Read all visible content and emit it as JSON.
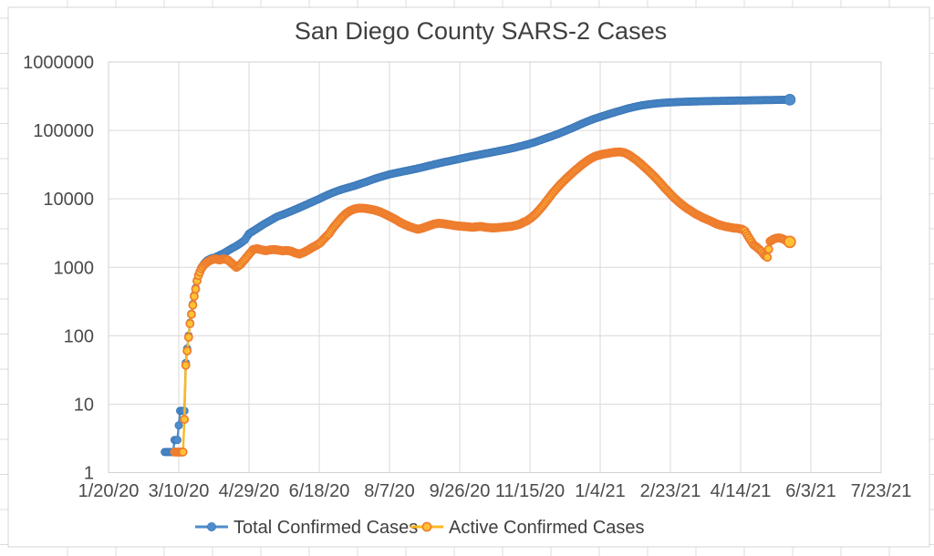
{
  "title": "San Diego County SARS-2 Cases",
  "legend": {
    "items": [
      {
        "label": "Total Confirmed Cases",
        "line_color": "#4E8CCB",
        "marker_fill": "#4E8CCB",
        "marker_stroke": "#3C78B8"
      },
      {
        "label": "Active Confirmed Cases",
        "line_color": "#FFB81F",
        "marker_fill": "#FFC233",
        "marker_stroke": "#EE7D2E"
      }
    ]
  },
  "chart_data": {
    "type": "line",
    "title": "San Diego County SARS-2 Cases",
    "xlabel": "",
    "ylabel": "",
    "grid": true,
    "legend_position": "bottom",
    "x_axis": {
      "tick_labels": [
        "1/20/20",
        "3/10/20",
        "4/29/20",
        "6/18/20",
        "8/7/20",
        "9/26/20",
        "11/15/20",
        "1/4/21",
        "2/23/21",
        "4/14/21",
        "6/3/21",
        "7/23/21"
      ],
      "tick_interval_days": 50,
      "min_day": 0,
      "max_day": 550,
      "day_zero_date": "1/20/20"
    },
    "y_axis": {
      "scale": "log",
      "min": 1,
      "max": 1000000,
      "tick_labels": [
        "1000000",
        "100000",
        "10000",
        "1000",
        "100",
        "10",
        "1"
      ]
    },
    "sampling": "points_day_value are control points [days since 1/20/20, estimated value]; chart shows daily markers, regenerated by log-linear interpolation",
    "series": [
      {
        "name": "Total Confirmed Cases",
        "line_color": "#4E8CCB",
        "marker_fill": "#4E8CCB",
        "marker_stroke": "#3C78B8",
        "marker_stroke_width": 0.8,
        "points_day_value": [
          [
            40,
            2
          ],
          [
            43,
            2
          ],
          [
            46,
            2
          ],
          [
            47,
            3
          ],
          [
            49,
            3
          ],
          [
            51,
            8
          ],
          [
            53,
            8
          ],
          [
            54,
            8
          ],
          [
            55,
            40
          ],
          [
            56,
            65
          ],
          [
            57,
            100
          ],
          [
            58,
            155
          ],
          [
            59,
            210
          ],
          [
            60,
            290
          ],
          [
            61,
            390
          ],
          [
            62,
            500
          ],
          [
            63,
            650
          ],
          [
            64,
            780
          ],
          [
            66,
            980
          ],
          [
            68,
            1130
          ],
          [
            70,
            1250
          ],
          [
            73,
            1350
          ],
          [
            76,
            1400
          ],
          [
            79,
            1500
          ],
          [
            82,
            1600
          ],
          [
            85,
            1750
          ],
          [
            88,
            1900
          ],
          [
            91,
            2050
          ],
          [
            94,
            2250
          ],
          [
            97,
            2500
          ],
          [
            100,
            3100
          ],
          [
            105,
            3600
          ],
          [
            110,
            4200
          ],
          [
            115,
            4800
          ],
          [
            120,
            5500
          ],
          [
            125,
            6000
          ],
          [
            130,
            6600
          ],
          [
            135,
            7300
          ],
          [
            140,
            8100
          ],
          [
            145,
            9000
          ],
          [
            150,
            10000
          ],
          [
            155,
            11200
          ],
          [
            160,
            12400
          ],
          [
            165,
            13500
          ],
          [
            170,
            14500
          ],
          [
            175,
            15500
          ],
          [
            180,
            16800
          ],
          [
            185,
            18200
          ],
          [
            190,
            19800
          ],
          [
            195,
            21300
          ],
          [
            200,
            22800
          ],
          [
            205,
            24000
          ],
          [
            210,
            25200
          ],
          [
            215,
            26400
          ],
          [
            220,
            27800
          ],
          [
            225,
            29400
          ],
          [
            230,
            31200
          ],
          [
            235,
            33000
          ],
          [
            240,
            34800
          ],
          [
            245,
            36500
          ],
          [
            250,
            38500
          ],
          [
            255,
            40500
          ],
          [
            260,
            42500
          ],
          [
            265,
            44500
          ],
          [
            270,
            46500
          ],
          [
            275,
            48800
          ],
          [
            280,
            51000
          ],
          [
            285,
            53500
          ],
          [
            290,
            56500
          ],
          [
            295,
            60000
          ],
          [
            300,
            64000
          ],
          [
            305,
            69000
          ],
          [
            310,
            75000
          ],
          [
            315,
            81500
          ],
          [
            320,
            89000
          ],
          [
            325,
            98000
          ],
          [
            330,
            108000
          ],
          [
            335,
            120000
          ],
          [
            340,
            133000
          ],
          [
            345,
            146000
          ],
          [
            350,
            158000
          ],
          [
            355,
            170000
          ],
          [
            360,
            183000
          ],
          [
            365,
            196000
          ],
          [
            370,
            210000
          ],
          [
            375,
            222000
          ],
          [
            380,
            233000
          ],
          [
            385,
            241000
          ],
          [
            390,
            248000
          ],
          [
            395,
            253000
          ],
          [
            400,
            257000
          ],
          [
            405,
            260000
          ],
          [
            410,
            262500
          ],
          [
            415,
            264500
          ],
          [
            420,
            266000
          ],
          [
            425,
            267500
          ],
          [
            430,
            269000
          ],
          [
            435,
            270200
          ],
          [
            440,
            271400
          ],
          [
            445,
            272500
          ],
          [
            450,
            273600
          ],
          [
            455,
            274700
          ],
          [
            460,
            275800
          ],
          [
            465,
            276900
          ],
          [
            470,
            278000
          ],
          [
            475,
            279000
          ],
          [
            480,
            280000
          ],
          [
            485,
            281000
          ]
        ]
      },
      {
        "name": "Active Confirmed Cases",
        "line_color": "#FFB81F",
        "marker_fill": "#FFC233",
        "marker_stroke": "#EE7D2E",
        "marker_stroke_width": 1.7,
        "points_day_value": [
          [
            47,
            2
          ],
          [
            49,
            2
          ],
          [
            51,
            2
          ],
          [
            53,
            2
          ],
          [
            54,
            6
          ],
          [
            55,
            37
          ],
          [
            56,
            60
          ],
          [
            57,
            95
          ],
          [
            58,
            150
          ],
          [
            59,
            205
          ],
          [
            60,
            280
          ],
          [
            61,
            375
          ],
          [
            62,
            480
          ],
          [
            63,
            630
          ],
          [
            64,
            760
          ],
          [
            65,
            850
          ],
          [
            66,
            950
          ],
          [
            68,
            1080
          ],
          [
            70,
            1180
          ],
          [
            73,
            1280
          ],
          [
            76,
            1330
          ],
          [
            79,
            1280
          ],
          [
            82,
            1330
          ],
          [
            85,
            1280
          ],
          [
            88,
            1130
          ],
          [
            91,
            1000
          ],
          [
            94,
            1100
          ],
          [
            97,
            1300
          ],
          [
            100,
            1550
          ],
          [
            103,
            1820
          ],
          [
            106,
            1870
          ],
          [
            109,
            1800
          ],
          [
            112,
            1750
          ],
          [
            115,
            1800
          ],
          [
            118,
            1820
          ],
          [
            121,
            1780
          ],
          [
            124,
            1740
          ],
          [
            127,
            1760
          ],
          [
            130,
            1720
          ],
          [
            133,
            1620
          ],
          [
            136,
            1560
          ],
          [
            139,
            1650
          ],
          [
            142,
            1780
          ],
          [
            145,
            1950
          ],
          [
            148,
            2100
          ],
          [
            151,
            2300
          ],
          [
            154,
            2700
          ],
          [
            157,
            3100
          ],
          [
            160,
            3800
          ],
          [
            163,
            4500
          ],
          [
            166,
            5300
          ],
          [
            169,
            6100
          ],
          [
            172,
            6700
          ],
          [
            175,
            7100
          ],
          [
            178,
            7300
          ],
          [
            181,
            7300
          ],
          [
            184,
            7200
          ],
          [
            187,
            7000
          ],
          [
            190,
            6800
          ],
          [
            193,
            6500
          ],
          [
            196,
            6100
          ],
          [
            199,
            5700
          ],
          [
            202,
            5300
          ],
          [
            205,
            4900
          ],
          [
            208,
            4500
          ],
          [
            211,
            4200
          ],
          [
            214,
            3950
          ],
          [
            217,
            3750
          ],
          [
            220,
            3600
          ],
          [
            223,
            3700
          ],
          [
            226,
            3900
          ],
          [
            229,
            4100
          ],
          [
            232,
            4300
          ],
          [
            235,
            4400
          ],
          [
            238,
            4350
          ],
          [
            241,
            4250
          ],
          [
            244,
            4150
          ],
          [
            247,
            4050
          ],
          [
            250,
            4000
          ],
          [
            253,
            3950
          ],
          [
            256,
            3900
          ],
          [
            259,
            3850
          ],
          [
            262,
            3900
          ],
          [
            265,
            3950
          ],
          [
            268,
            3850
          ],
          [
            271,
            3800
          ],
          [
            274,
            3750
          ],
          [
            277,
            3800
          ],
          [
            280,
            3850
          ],
          [
            283,
            3900
          ],
          [
            286,
            3950
          ],
          [
            289,
            4050
          ],
          [
            292,
            4200
          ],
          [
            295,
            4500
          ],
          [
            298,
            4800
          ],
          [
            301,
            5300
          ],
          [
            304,
            6000
          ],
          [
            307,
            7000
          ],
          [
            310,
            8300
          ],
          [
            313,
            10000
          ],
          [
            316,
            12000
          ],
          [
            319,
            14200
          ],
          [
            322,
            16500
          ],
          [
            325,
            19000
          ],
          [
            328,
            21800
          ],
          [
            331,
            24800
          ],
          [
            334,
            28000
          ],
          [
            337,
            31500
          ],
          [
            340,
            35000
          ],
          [
            343,
            38500
          ],
          [
            346,
            41500
          ],
          [
            349,
            43500
          ],
          [
            352,
            45000
          ],
          [
            355,
            46000
          ],
          [
            358,
            47200
          ],
          [
            361,
            48200
          ],
          [
            364,
            48500
          ],
          [
            367,
            47500
          ],
          [
            370,
            44500
          ],
          [
            373,
            40500
          ],
          [
            376,
            36500
          ],
          [
            379,
            32500
          ],
          [
            382,
            28500
          ],
          [
            385,
            25000
          ],
          [
            388,
            21800
          ],
          [
            391,
            18800
          ],
          [
            394,
            16000
          ],
          [
            397,
            13700
          ],
          [
            400,
            11800
          ],
          [
            403,
            10200
          ],
          [
            406,
            9000
          ],
          [
            409,
            8000
          ],
          [
            412,
            7200
          ],
          [
            415,
            6600
          ],
          [
            418,
            6000
          ],
          [
            421,
            5600
          ],
          [
            424,
            5200
          ],
          [
            427,
            4900
          ],
          [
            430,
            4600
          ],
          [
            433,
            4300
          ],
          [
            436,
            4100
          ],
          [
            439,
            3950
          ],
          [
            442,
            3850
          ],
          [
            445,
            3750
          ],
          [
            448,
            3700
          ],
          [
            451,
            3600
          ],
          [
            453,
            3400
          ],
          [
            455,
            2900
          ],
          [
            457,
            2500
          ],
          [
            459,
            2150
          ],
          [
            461,
            2000
          ],
          [
            463,
            1850
          ],
          [
            465,
            1700
          ],
          [
            467,
            1500
          ],
          [
            469,
            1400
          ],
          [
            471,
            2400
          ],
          [
            473,
            2550
          ],
          [
            475,
            2650
          ],
          [
            477,
            2700
          ],
          [
            479,
            2650
          ],
          [
            481,
            2550
          ],
          [
            483,
            2400
          ],
          [
            485,
            2350
          ]
        ]
      }
    ],
    "colors": {
      "plot_gridline": "#d9d9d9",
      "plot_border": "#d2d2d2",
      "chart_frame_border": "#d5d5d5",
      "sheet_gridline": "#dcdcdc",
      "text": "#4a4a4a"
    }
  }
}
